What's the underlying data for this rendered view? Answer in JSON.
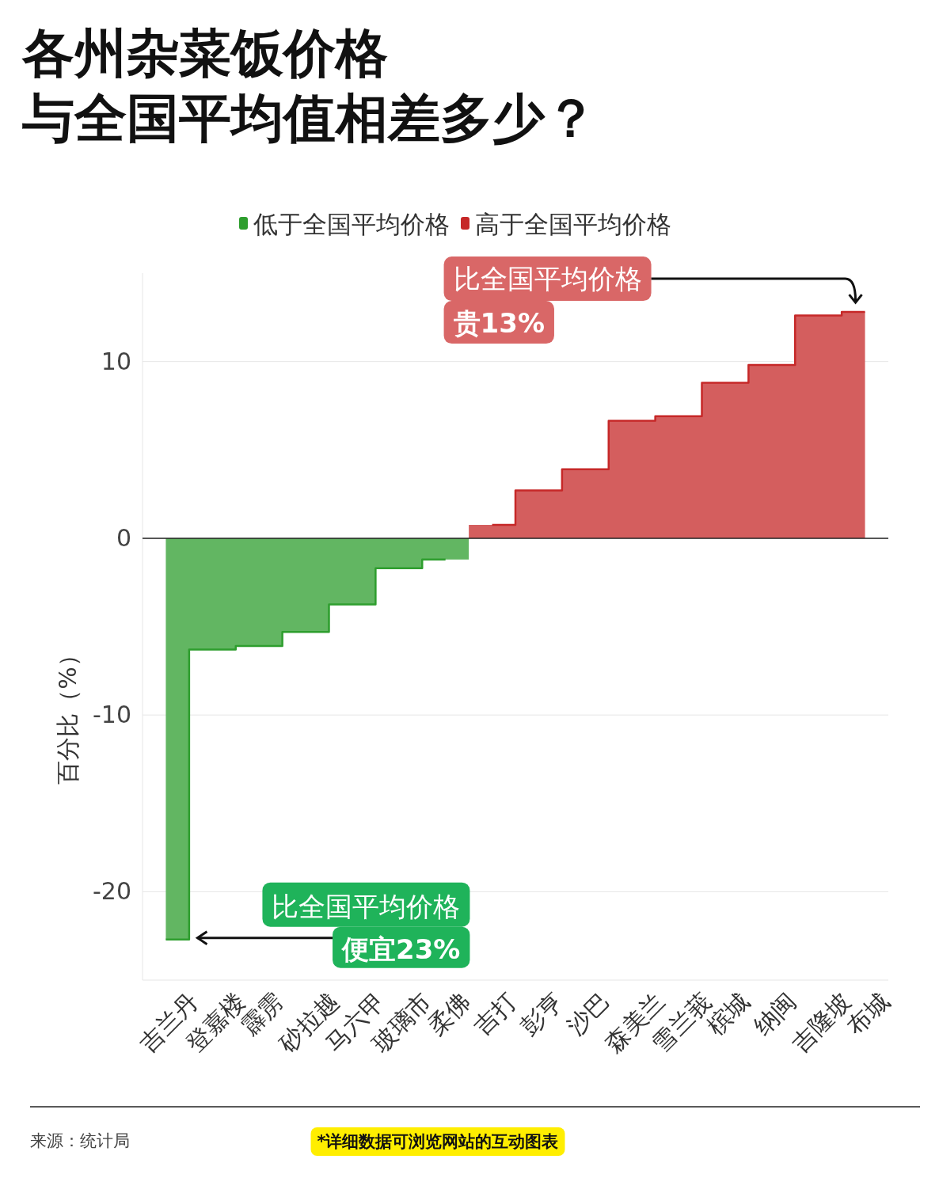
{
  "chart_data": {
    "type": "step",
    "title": "各州杂菜饭价格",
    "subtitle": "与全国平均值相差多少？",
    "ylabel": "百分比（%）",
    "categories": [
      "吉兰丹",
      "登嘉楼",
      "霹雳",
      "砂拉越",
      "马六甲",
      "玻璃市",
      "柔佛",
      "吉打",
      "彭亨",
      "沙巴",
      "森美兰",
      "雪兰莪",
      "槟城",
      "纳闽",
      "吉隆坡",
      "布城"
    ],
    "series": [
      {
        "name": "低于全国平均价格",
        "color": "#2e9e2e",
        "values": [
          -22.7,
          -6.3,
          -6.1,
          -5.3,
          -3.75,
          -1.7,
          -1.2,
          null,
          null,
          null,
          null,
          null,
          null,
          null,
          null,
          null
        ]
      },
      {
        "name": "高于全国平均价格",
        "color": "#c62828",
        "values": [
          null,
          null,
          null,
          null,
          null,
          null,
          null,
          0.76,
          2.7,
          3.9,
          6.65,
          6.9,
          8.8,
          9.8,
          12.6,
          12.8
        ]
      }
    ],
    "ylim": [
      -25,
      15
    ],
    "yticks": [
      -20,
      -10,
      0,
      10
    ],
    "grid": "y",
    "legend": "top",
    "ref_lines": [
      {
        "axis": "y",
        "value": 0,
        "color": "#222222"
      }
    ],
    "annotations": [
      "比全国平均价格",
      "贵13%",
      "比全国平均价格",
      "便宜23%",
      "来源：统计局",
      "*详细数据可浏览网站的互动图表"
    ]
  }
}
